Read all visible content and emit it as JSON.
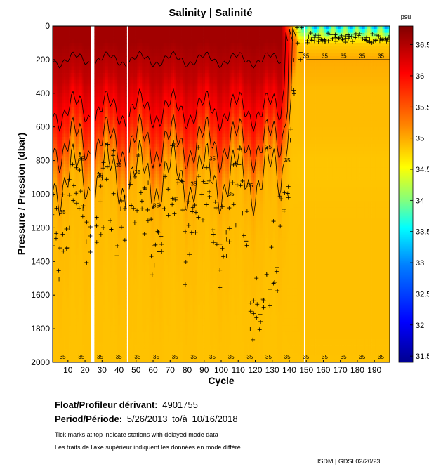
{
  "chart_data": {
    "type": "heatmap",
    "title": "Salinity | Salinité",
    "xlabel": "Cycle",
    "ylabel": "Pressure / Pression (dbar)",
    "x_range": [
      1,
      199
    ],
    "y_range": [
      0,
      2000
    ],
    "y_inverted": true,
    "x_ticks": [
      10,
      20,
      30,
      40,
      50,
      60,
      70,
      80,
      90,
      100,
      110,
      120,
      130,
      140,
      150,
      160,
      170,
      180,
      190
    ],
    "y_ticks": [
      0,
      200,
      400,
      600,
      800,
      1000,
      1200,
      1400,
      1600,
      1800,
      2000
    ],
    "colorbar": {
      "unit": "psu",
      "range": [
        31.4,
        36.8
      ],
      "ticks": [
        31.5,
        32,
        32.5,
        33,
        33.5,
        34,
        34.5,
        35,
        35.5,
        36,
        36.5
      ],
      "colors": [
        "#00008f",
        "#0000ff",
        "#0080ff",
        "#00ffff",
        "#80ff80",
        "#ffff00",
        "#ff8000",
        "#ff0000",
        "#800000"
      ]
    },
    "contour_levels": [
      35,
      35.5,
      36,
      36.5
    ],
    "contour_label": "35",
    "gaps_cycles": [
      24,
      25,
      45,
      149
    ],
    "salinity_profile": {
      "pressure": [
        0,
        100,
        200,
        300,
        400,
        500,
        600,
        700,
        800,
        900,
        1000,
        1200,
        1400,
        1600,
        1800,
        2000
      ],
      "early_cycles": [
        36.6,
        36.6,
        36.5,
        36.4,
        36.2,
        36.0,
        35.8,
        35.5,
        35.2,
        35.0,
        34.95,
        34.9,
        34.9,
        34.88,
        34.88,
        34.87
      ],
      "late_cycles": [
        33.5,
        34.8,
        35.0,
        34.95,
        34.9,
        34.9,
        34.9,
        34.88,
        34.85,
        34.85,
        34.87,
        34.88,
        34.88,
        34.88,
        34.88,
        34.87
      ]
    }
  },
  "info": {
    "float_label": "Float/Profileur dérivant:",
    "float_id": "4901755",
    "period_label": "Period/Période:",
    "period_start": "5/26/2013",
    "period_to": "to/à",
    "period_end": "10/16/2018",
    "note_en": "Tick marks at top indicate stations with delayed mode data",
    "note_fr": "Les traits de l'axe supérieur indiquent les données en mode différé",
    "credit": "ISDM | GDSI 02/20/23"
  }
}
